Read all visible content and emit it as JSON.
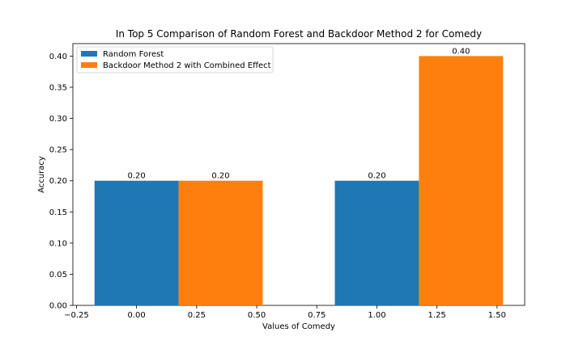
{
  "chart_data": {
    "type": "bar",
    "title": "In Top 5 Comparison of Random Forest and Backdoor Method 2 for Comedy",
    "xlabel": "Values of Comedy",
    "ylabel": "Accuracy",
    "x": [
      0,
      1
    ],
    "bar_width": 0.35,
    "xlim": [
      -0.265,
      1.615
    ],
    "ylim": [
      0,
      0.42
    ],
    "xticks": [
      -0.25,
      0.0,
      0.25,
      0.5,
      0.75,
      1.0,
      1.25,
      1.5
    ],
    "xtick_labels": [
      "−0.25",
      "0.00",
      "0.25",
      "0.50",
      "0.75",
      "1.00",
      "1.25",
      "1.50"
    ],
    "yticks": [
      0,
      0.05,
      0.1,
      0.15,
      0.2,
      0.25,
      0.3,
      0.35,
      0.4
    ],
    "ytick_labels": [
      "0.00",
      "0.05",
      "0.10",
      "0.15",
      "0.20",
      "0.25",
      "0.30",
      "0.35",
      "0.40"
    ],
    "grid": false,
    "legend_position": "top-left",
    "series": [
      {
        "name": "Random Forest",
        "color": "#1f77b4",
        "values": [
          0.2,
          0.2
        ],
        "labels": [
          "0.20",
          "0.20"
        ]
      },
      {
        "name": "Backdoor Method 2 with Combined Effect",
        "color": "#ff7f0e",
        "values": [
          0.2,
          0.4
        ],
        "labels": [
          "0.20",
          "0.40"
        ]
      }
    ]
  }
}
